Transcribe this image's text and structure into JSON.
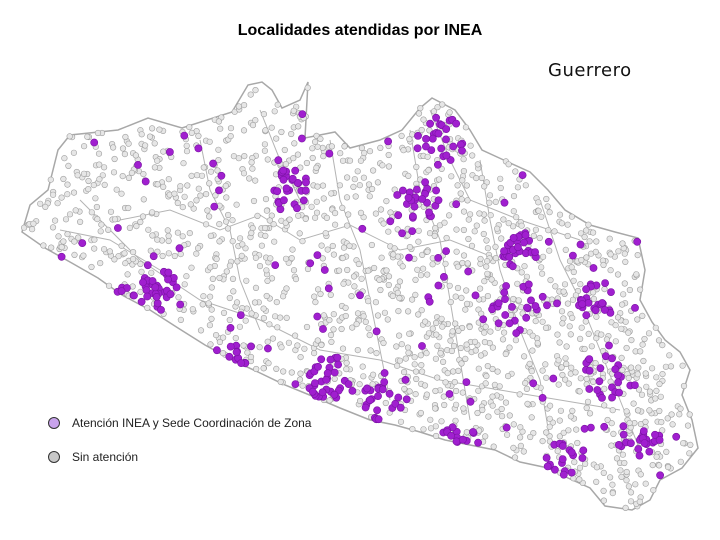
{
  "map": {
    "title": "Localidades atendidas por INEA",
    "region": "Guerrero"
  },
  "legend": {
    "items": [
      {
        "label": "Atención INEA y Sede Coordinación de Zona",
        "color": "#c9a3ec"
      },
      {
        "label": "Sin atención",
        "color": "#c8c8c8"
      }
    ]
  },
  "colors": {
    "attended_point": "#a01fcf",
    "attended_point_edge": "#7a13a3",
    "unattended_point": "#e6e6e6",
    "unattended_point_edge": "#9e9e9e",
    "boundary": "#a8a8a8"
  }
}
